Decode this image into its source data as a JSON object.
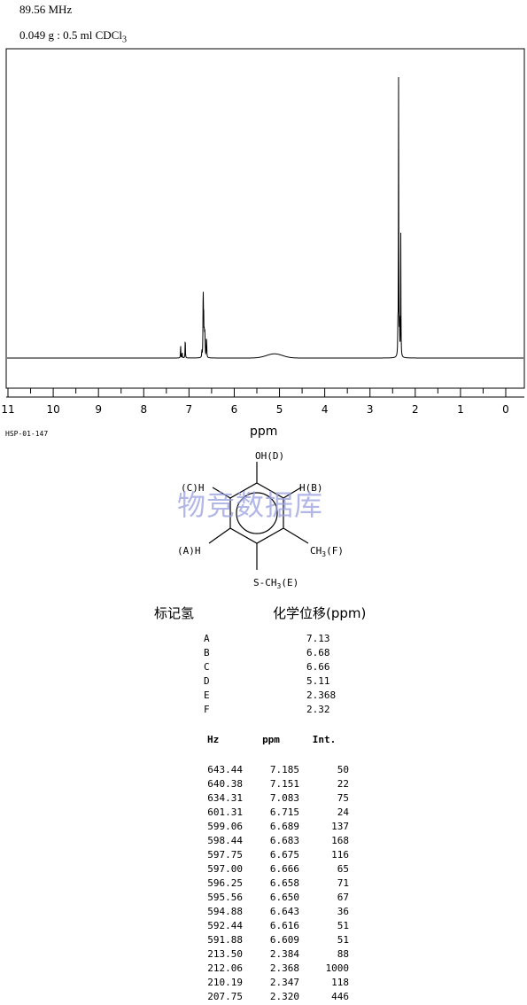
{
  "header": {
    "frequency": "89.56 MHz",
    "sample_main": "0.049 g : 0.5 ml CDCl",
    "sample_sub": "3"
  },
  "spectrum_id": "HSP-01-147",
  "watermark": "物竞数据库",
  "chart_data": {
    "type": "line",
    "title": "",
    "xlabel": "ppm",
    "ylabel": "",
    "xlim": [
      11,
      0
    ],
    "x_reversed": true,
    "ylim": [
      0,
      1000
    ],
    "grid": false,
    "x_ticks": [
      "11",
      "10",
      "9",
      "8",
      "7",
      "6",
      "5",
      "4",
      "3",
      "2",
      "1",
      "0"
    ],
    "x_tick_values": [
      11,
      10,
      9,
      8,
      7,
      6,
      5,
      4,
      3,
      2,
      1,
      0
    ],
    "broad_features": [
      {
        "ppm": 5.11,
        "height": 15,
        "width": 0.35
      }
    ],
    "peaks": [
      {
        "hz": "643.44",
        "ppm": "7.185",
        "int": "50"
      },
      {
        "hz": "640.38",
        "ppm": "7.151",
        "int": "22"
      },
      {
        "hz": "634.31",
        "ppm": "7.083",
        "int": "75"
      },
      {
        "hz": "601.31",
        "ppm": "6.715",
        "int": "24"
      },
      {
        "hz": "599.06",
        "ppm": "6.689",
        "int": "137"
      },
      {
        "hz": "598.44",
        "ppm": "6.683",
        "int": "168"
      },
      {
        "hz": "597.75",
        "ppm": "6.675",
        "int": "116"
      },
      {
        "hz": "597.00",
        "ppm": "6.666",
        "int": "65"
      },
      {
        "hz": "596.25",
        "ppm": "6.658",
        "int": "71"
      },
      {
        "hz": "595.56",
        "ppm": "6.650",
        "int": "67"
      },
      {
        "hz": "594.88",
        "ppm": "6.643",
        "int": "36"
      },
      {
        "hz": "592.44",
        "ppm": "6.616",
        "int": "51"
      },
      {
        "hz": "591.88",
        "ppm": "6.609",
        "int": "51"
      },
      {
        "hz": "213.50",
        "ppm": "2.384",
        "int": "88"
      },
      {
        "hz": "212.06",
        "ppm": "2.368",
        "int": "1000"
      },
      {
        "hz": "210.19",
        "ppm": "2.347",
        "int": "118"
      },
      {
        "hz": "207.75",
        "ppm": "2.320",
        "int": "446"
      }
    ]
  },
  "structure": {
    "oh": "OH(D)",
    "h_c": "(C)H",
    "h_b": "H(B)",
    "h_a": "(A)H",
    "ch3_f": "CH",
    "ch3_f_sub": "3",
    "ch3_f_tail": "(F)",
    "sch3": "S-CH",
    "sch3_sub": "3",
    "sch3_tail": "(E)"
  },
  "assignment": {
    "header_label": "标记氢",
    "header_shift": "化学位移(ppm)",
    "rows": [
      {
        "label": "A",
        "shift": "7.13"
      },
      {
        "label": "B",
        "shift": "6.68"
      },
      {
        "label": "C",
        "shift": "6.66"
      },
      {
        "label": "D",
        "shift": "5.11"
      },
      {
        "label": "E",
        "shift": "2.368"
      },
      {
        "label": "F",
        "shift": "2.32"
      }
    ]
  },
  "peak_table": {
    "col_hz": "Hz",
    "col_ppm": "ppm",
    "col_int": "Int."
  }
}
